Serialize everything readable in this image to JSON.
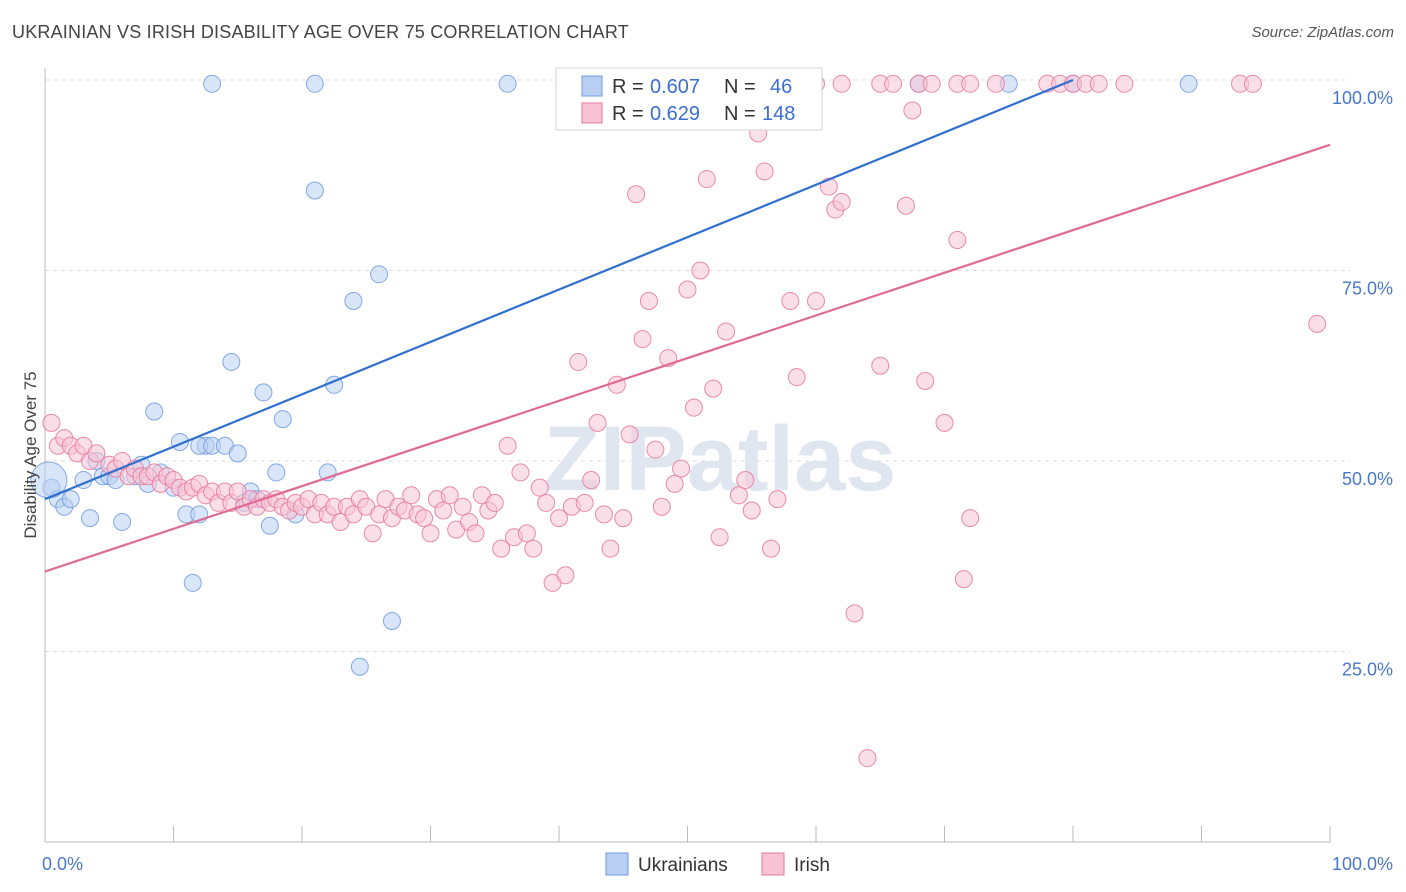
{
  "title": "UKRAINIAN VS IRISH DISABILITY AGE OVER 75 CORRELATION CHART",
  "source": "Source: ZipAtlas.com",
  "watermark": "ZIPatlas",
  "chart_data": {
    "type": "scatter",
    "ylabel": "Disability Age Over 75",
    "xlim": [
      0,
      100
    ],
    "ylim": [
      0,
      100
    ],
    "x_tick_labels": [
      "0.0%",
      "100.0%"
    ],
    "y_tick_values": [
      25,
      50,
      75,
      100
    ],
    "y_tick_labels": [
      "25.0%",
      "50.0%",
      "75.0%",
      "100.0%"
    ],
    "grid": "horizontal-dashed",
    "legend": {
      "position": "top-center",
      "rows": [
        {
          "r_label": "R =",
          "r": "0.607",
          "n_label": "N =",
          "n": "46"
        },
        {
          "r_label": "R =",
          "r": "0.629",
          "n_label": "N =",
          "n": "148"
        }
      ]
    },
    "series": [
      {
        "name": "Ukrainians",
        "color": "#6f9be0",
        "fill": "#b9cff2",
        "trend": {
          "x": [
            0,
            80
          ],
          "y": [
            45,
            100
          ]
        },
        "points": [
          [
            0.5,
            46.5
          ],
          [
            1,
            45
          ],
          [
            1.5,
            44
          ],
          [
            2,
            45
          ],
          [
            3,
            47.5
          ],
          [
            3.5,
            42.5
          ],
          [
            4,
            50
          ],
          [
            4.5,
            48
          ],
          [
            5,
            48
          ],
          [
            5.5,
            47.5
          ],
          [
            6,
            42
          ],
          [
            7,
            48
          ],
          [
            7.5,
            49.5
          ],
          [
            8,
            47
          ],
          [
            8.5,
            56.5
          ],
          [
            9,
            48.5
          ],
          [
            10,
            46.5
          ],
          [
            10.5,
            52.5
          ],
          [
            11,
            43
          ],
          [
            12,
            43
          ],
          [
            12.5,
            52
          ],
          [
            11.5,
            34
          ],
          [
            12,
            52
          ],
          [
            13,
            52
          ],
          [
            14,
            52
          ],
          [
            14.5,
            63
          ],
          [
            15,
            51
          ],
          [
            15.5,
            44.5
          ],
          [
            16,
            46
          ],
          [
            16.5,
            45
          ],
          [
            17,
            59
          ],
          [
            17.5,
            41.5
          ],
          [
            18,
            48.5
          ],
          [
            18.5,
            55.5
          ],
          [
            19.5,
            43
          ],
          [
            21,
            85.5
          ],
          [
            22,
            48.5
          ],
          [
            22.5,
            60
          ],
          [
            24,
            71
          ],
          [
            24.5,
            23
          ],
          [
            26,
            74.5
          ],
          [
            27,
            29
          ],
          [
            13,
            99.5
          ],
          [
            21,
            99.5
          ],
          [
            36,
            99.5
          ],
          [
            68,
            99.5
          ],
          [
            75,
            99.5
          ],
          [
            80,
            99.5
          ],
          [
            89,
            99.5
          ]
        ]
      },
      {
        "name": "Irish",
        "color": "#e8779c",
        "fill": "#f8c4d5",
        "trend": {
          "x": [
            0,
            100
          ],
          "y": [
            35.5,
            91.5
          ]
        },
        "points": [
          [
            0.5,
            55
          ],
          [
            1,
            52
          ],
          [
            1.5,
            53
          ],
          [
            2,
            52
          ],
          [
            2.5,
            51
          ],
          [
            3,
            52
          ],
          [
            3.5,
            50
          ],
          [
            4,
            51
          ],
          [
            5,
            49.5
          ],
          [
            5.5,
            49
          ],
          [
            6,
            50
          ],
          [
            6.5,
            48
          ],
          [
            7,
            49
          ],
          [
            7.5,
            48
          ],
          [
            8,
            48
          ],
          [
            8.5,
            48.5
          ],
          [
            9,
            47
          ],
          [
            9.5,
            48
          ],
          [
            10,
            47.5
          ],
          [
            10.5,
            46.5
          ],
          [
            11,
            46
          ],
          [
            11.5,
            46.5
          ],
          [
            12,
            47
          ],
          [
            12.5,
            45.5
          ],
          [
            13,
            46
          ],
          [
            13.5,
            44.5
          ],
          [
            14,
            46
          ],
          [
            14.5,
            44.5
          ],
          [
            15,
            46
          ],
          [
            15.5,
            44
          ],
          [
            16,
            45
          ],
          [
            16.5,
            44
          ],
          [
            17,
            45
          ],
          [
            17.5,
            44.5
          ],
          [
            18,
            45
          ],
          [
            18.5,
            44
          ],
          [
            19,
            43.5
          ],
          [
            19.5,
            44.5
          ],
          [
            20,
            44
          ],
          [
            20.5,
            45
          ],
          [
            21,
            43
          ],
          [
            21.5,
            44.5
          ],
          [
            22,
            43
          ],
          [
            22.5,
            44
          ],
          [
            23,
            42
          ],
          [
            23.5,
            44
          ],
          [
            24,
            43
          ],
          [
            24.5,
            45
          ],
          [
            25,
            44
          ],
          [
            25.5,
            40.5
          ],
          [
            26,
            43
          ],
          [
            26.5,
            45
          ],
          [
            27,
            42.5
          ],
          [
            27.5,
            44
          ],
          [
            28,
            43.5
          ],
          [
            28.5,
            45.5
          ],
          [
            29,
            43
          ],
          [
            29.5,
            42.5
          ],
          [
            30,
            40.5
          ],
          [
            30.5,
            45
          ],
          [
            31,
            43.5
          ],
          [
            31.5,
            45.5
          ],
          [
            32,
            41
          ],
          [
            32.5,
            44
          ],
          [
            33,
            42
          ],
          [
            33.5,
            40.5
          ],
          [
            34,
            45.5
          ],
          [
            34.5,
            43.5
          ],
          [
            35,
            44.5
          ],
          [
            35.5,
            38.5
          ],
          [
            36,
            52
          ],
          [
            36.5,
            40
          ],
          [
            37,
            48.5
          ],
          [
            37.5,
            40.5
          ],
          [
            38,
            38.5
          ],
          [
            38.5,
            46.5
          ],
          [
            39,
            44.5
          ],
          [
            39.5,
            34
          ],
          [
            40,
            42.5
          ],
          [
            40.5,
            35
          ],
          [
            41,
            44
          ],
          [
            41.5,
            63
          ],
          [
            42,
            44.5
          ],
          [
            42.5,
            47.5
          ],
          [
            43,
            55
          ],
          [
            43.5,
            43
          ],
          [
            44,
            38.5
          ],
          [
            44.5,
            60
          ],
          [
            45,
            42.5
          ],
          [
            45.5,
            53.5
          ],
          [
            46,
            85
          ],
          [
            46.5,
            66
          ],
          [
            47,
            71
          ],
          [
            47.5,
            51.5
          ],
          [
            48,
            44
          ],
          [
            48.5,
            63.5
          ],
          [
            49,
            47
          ],
          [
            49.5,
            49
          ],
          [
            50,
            72.5
          ],
          [
            50.5,
            57
          ],
          [
            51,
            75
          ],
          [
            51.5,
            87
          ],
          [
            52,
            59.5
          ],
          [
            52.5,
            40
          ],
          [
            53,
            67
          ],
          [
            54,
            45.5
          ],
          [
            54.5,
            47.5
          ],
          [
            55,
            43.5
          ],
          [
            55.5,
            93
          ],
          [
            56,
            88
          ],
          [
            56.5,
            38.5
          ],
          [
            57,
            45
          ],
          [
            58,
            71
          ],
          [
            58.5,
            61
          ],
          [
            60,
            71
          ],
          [
            61,
            86
          ],
          [
            61.5,
            83
          ],
          [
            62,
            84
          ],
          [
            63,
            30
          ],
          [
            64,
            11
          ],
          [
            65,
            62.5
          ],
          [
            67,
            83.5
          ],
          [
            67.5,
            96
          ],
          [
            68.5,
            60.5
          ],
          [
            70,
            55
          ],
          [
            71,
            79
          ],
          [
            71.5,
            34.5
          ],
          [
            72,
            42.5
          ],
          [
            54,
            99.5
          ],
          [
            60,
            99.5
          ],
          [
            62,
            99.5
          ],
          [
            65,
            99.5
          ],
          [
            66,
            99.5
          ],
          [
            68,
            99.5
          ],
          [
            69,
            99.5
          ],
          [
            71,
            99.5
          ],
          [
            72,
            99.5
          ],
          [
            74,
            99.5
          ],
          [
            78,
            99.5
          ],
          [
            79,
            99.5
          ],
          [
            80,
            99.5
          ],
          [
            81,
            99.5
          ],
          [
            82,
            99.5
          ],
          [
            84,
            99.5
          ],
          [
            93,
            99.5
          ],
          [
            94,
            99.5
          ],
          [
            99,
            68
          ]
        ]
      }
    ]
  }
}
